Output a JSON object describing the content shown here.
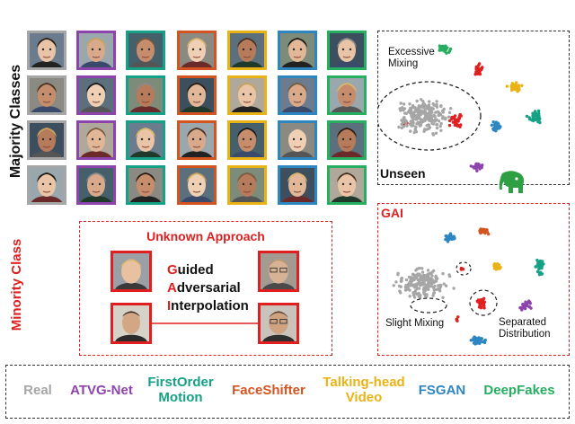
{
  "labels": {
    "majority": "Majority Classes",
    "minority": "Minority Class",
    "unseen": "Unseen",
    "gai": "GAI",
    "unknown_approach": "Unknown Approach",
    "gai_words": [
      {
        "first": "G",
        "rest": "uided"
      },
      {
        "first": "A",
        "rest": "dversarial"
      },
      {
        "first": "I",
        "rest": "nterpolation"
      }
    ],
    "excessive": "Excessive",
    "mixing": "Mixing",
    "slight_mixing": "Slight Mixing",
    "separated": "Separated",
    "distribution": "Distribution"
  },
  "legend": [
    {
      "line1": "Real",
      "line2": "",
      "color": "#a6a6a6"
    },
    {
      "line1": "ATVG-Net",
      "line2": "",
      "color": "#8e44ad"
    },
    {
      "line1": "FirstOrder",
      "line2": "Motion",
      "color": "#16a085"
    },
    {
      "line1": "FaceShifter",
      "line2": "",
      "color": "#d35420"
    },
    {
      "line1": "Talking-head",
      "line2": "Video",
      "color": "#e9b316"
    },
    {
      "line1": "FSGAN",
      "line2": "",
      "color": "#2e86c1"
    },
    {
      "line1": "DeepFakes",
      "line2": "",
      "color": "#27ae60"
    }
  ],
  "column_colors": [
    "#a6a6a6",
    "#8e44ad",
    "#16a085",
    "#d35420",
    "#e9b316",
    "#2e86c1",
    "#27ae60"
  ]
}
